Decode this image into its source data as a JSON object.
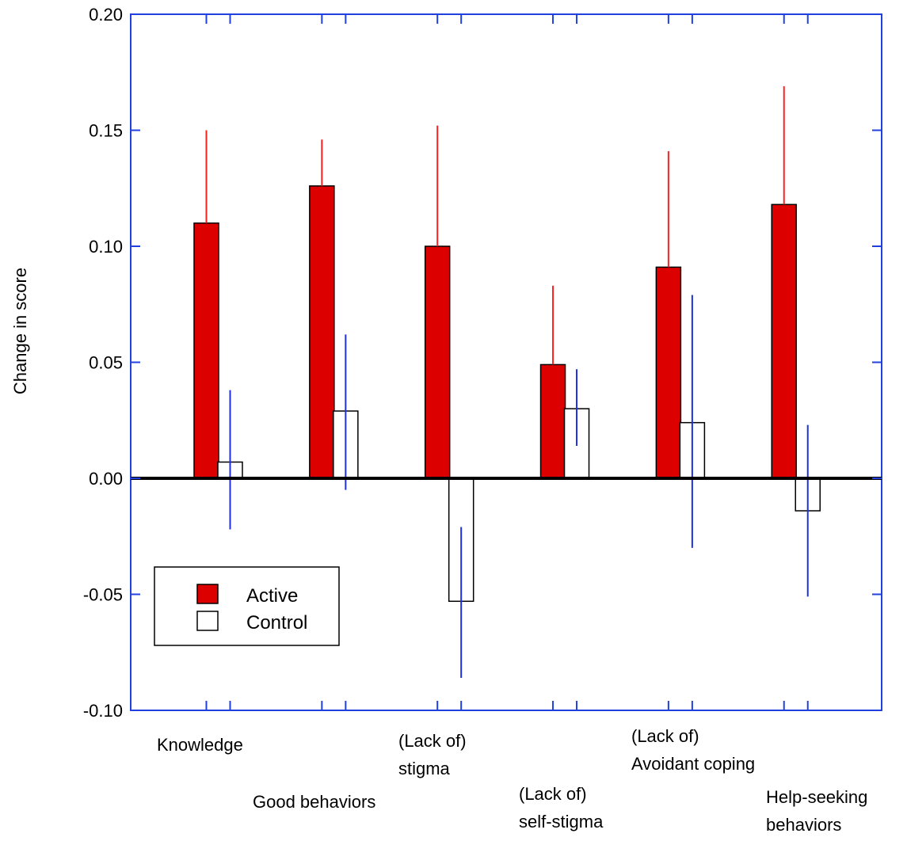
{
  "chart_data": {
    "type": "bar",
    "title": "",
    "xlabel": "",
    "ylabel": "Change in score",
    "ylim": [
      -0.1,
      0.2
    ],
    "yticks": [
      "-0.10",
      "-0.05",
      "0.00",
      "0.05",
      "0.10",
      "0.15",
      "0.20"
    ],
    "grid": false,
    "legend_position": "bottom-left",
    "categories": [
      [
        "Knowledge"
      ],
      [
        "Good behaviors"
      ],
      [
        "(Lack of)",
        "stigma"
      ],
      [
        "(Lack of)",
        "self-stigma"
      ],
      [
        "(Lack of)",
        "Avoidant coping"
      ],
      [
        "Help-seeking",
        "behaviors"
      ]
    ],
    "series": [
      {
        "name": "Active",
        "color": "#dd0000",
        "values": [
          0.11,
          0.126,
          0.1,
          0.049,
          0.091,
          0.118
        ],
        "error_upper": [
          0.15,
          0.146,
          0.152,
          0.083,
          0.141,
          0.169
        ],
        "error_color": "#ff2020"
      },
      {
        "name": "Control",
        "color": "#ffffff",
        "values": [
          0.007,
          0.029,
          -0.053,
          0.03,
          0.024,
          -0.014
        ],
        "error_lower": [
          -0.022,
          -0.005,
          -0.086,
          0.014,
          -0.03,
          -0.051
        ],
        "error_upper": [
          0.038,
          0.062,
          -0.021,
          0.047,
          0.079,
          0.023
        ],
        "error_color": "#2030e0"
      }
    ],
    "axis_color": "#2040e0"
  }
}
